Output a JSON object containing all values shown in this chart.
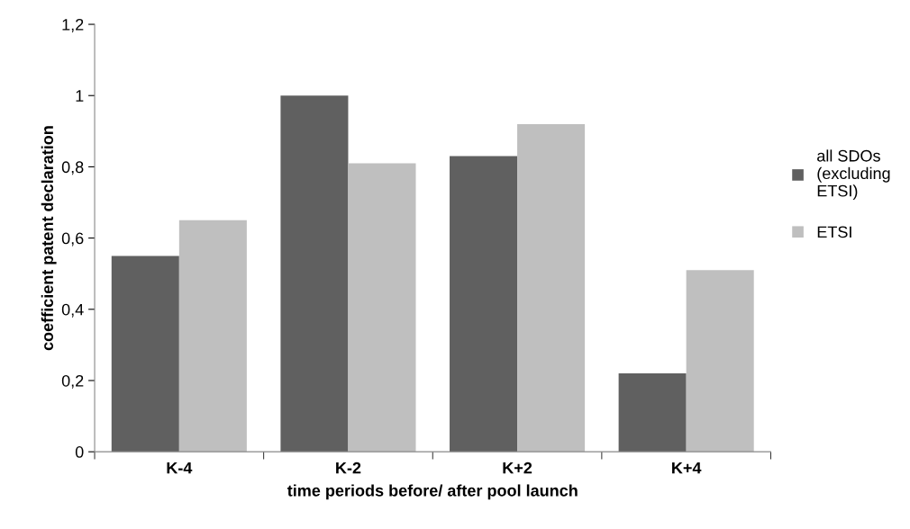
{
  "chart_data": {
    "type": "bar",
    "xlabel": "time periods before/ after pool launch",
    "ylabel": "coefficient patent declaration",
    "categories": [
      "K-4",
      "K-2",
      "K+2",
      "K+4"
    ],
    "series": [
      {
        "name": "all SDOs\n(excluding\nETSI)",
        "color": "#606060",
        "values": [
          0.55,
          1.0,
          0.83,
          0.22
        ]
      },
      {
        "name": "ETSI",
        "color": "#bfbfbf",
        "values": [
          0.65,
          0.81,
          0.92,
          0.51
        ]
      }
    ],
    "ylim": [
      0,
      1.2
    ],
    "yticks": [
      0,
      {
        "value": 0.2,
        "label": "0,2"
      },
      {
        "value": 0.4,
        "label": "0,4"
      },
      {
        "value": 0.6,
        "label": "0,6"
      },
      {
        "value": 0.8,
        "label": "0,8"
      },
      1,
      {
        "value": 1.2,
        "label": "1,2"
      }
    ],
    "grid": false,
    "legend": "right"
  }
}
